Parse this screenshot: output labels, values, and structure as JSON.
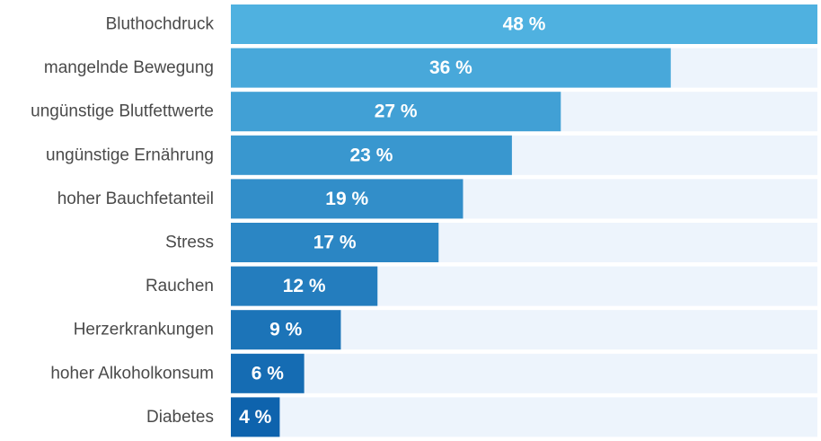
{
  "chart_data": {
    "type": "bar",
    "orientation": "horizontal",
    "categories": [
      "Bluthochdruck",
      "mangelnde Bewegung",
      "ungünstige Blutfettwerte",
      "ungünstige Ernährung",
      "hoher Bauchfetanteil",
      "Stress",
      "Rauchen",
      "Herzerkrankungen",
      "hoher Alkoholkonsum",
      "Diabetes"
    ],
    "values": [
      48,
      36,
      27,
      23,
      19,
      17,
      12,
      9,
      6,
      4
    ],
    "value_labels": [
      "48 %",
      "36 %",
      "27 %",
      "23 %",
      "19 %",
      "17 %",
      "12 %",
      "9 %",
      "6 %",
      "4 %"
    ],
    "xlim": [
      0,
      48
    ],
    "unit": "%",
    "title": "",
    "xlabel": "",
    "ylabel": "",
    "grid": false,
    "legend": "none",
    "colors": {
      "track": "#edf4fc",
      "bar_light": "#4fb1e0",
      "bar_dark": "#0e63ad",
      "category_text": "#4a4a4a",
      "value_text": "#ffffff"
    }
  }
}
